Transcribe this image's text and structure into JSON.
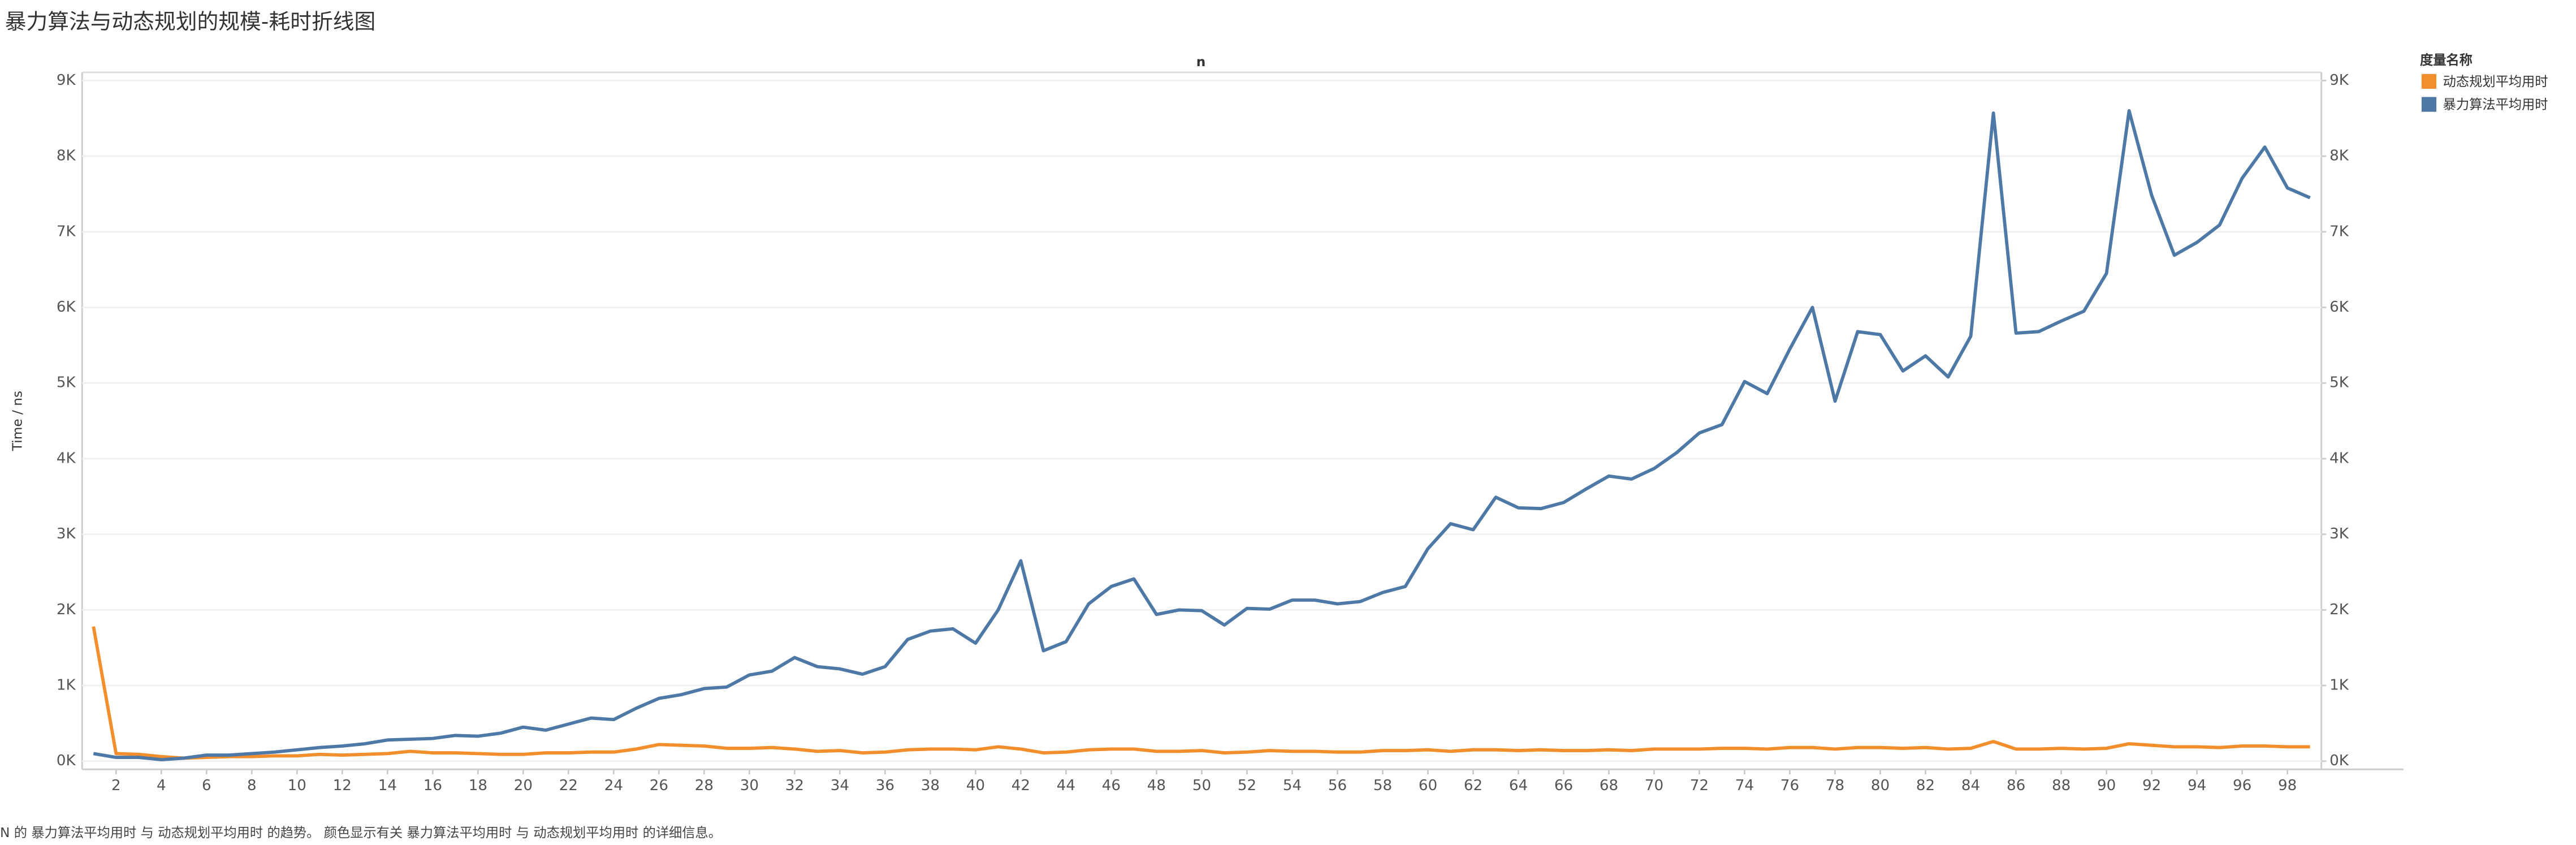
{
  "chart_data": {
    "type": "line",
    "title": "暴力算法与动态规划的规模-耗时折线图",
    "x_label": "n",
    "y_label": "Time / ns",
    "legend_title": "度量名称",
    "caption": "N 的 暴力算法平均用时 与 动态规划平均用时 的趋势。 颜色显示有关 暴力算法平均用时 与 动态规划平均用时 的详细信息。",
    "legend_position": "right",
    "grid": true,
    "x": [
      1,
      2,
      3,
      4,
      5,
      6,
      7,
      8,
      9,
      10,
      11,
      12,
      13,
      14,
      15,
      16,
      17,
      18,
      19,
      20,
      21,
      22,
      23,
      24,
      25,
      26,
      27,
      28,
      29,
      30,
      31,
      32,
      33,
      34,
      35,
      36,
      37,
      38,
      39,
      40,
      41,
      42,
      43,
      44,
      45,
      46,
      47,
      48,
      49,
      50,
      51,
      52,
      53,
      54,
      55,
      56,
      57,
      58,
      59,
      60,
      61,
      62,
      63,
      64,
      65,
      66,
      67,
      68,
      69,
      70,
      71,
      72,
      73,
      74,
      75,
      76,
      77,
      78,
      79,
      80,
      81,
      82,
      83,
      84,
      85,
      86,
      87,
      88,
      89,
      90,
      91,
      92,
      93,
      94,
      95,
      96,
      97,
      98,
      99
    ],
    "xlim": [
      0.5,
      99.5
    ],
    "xticks": [
      2,
      4,
      6,
      8,
      10,
      12,
      14,
      16,
      18,
      20,
      22,
      24,
      26,
      28,
      30,
      32,
      34,
      36,
      38,
      40,
      42,
      44,
      46,
      48,
      50,
      52,
      54,
      56,
      58,
      60,
      62,
      64,
      66,
      68,
      70,
      72,
      74,
      76,
      78,
      80,
      82,
      84,
      86,
      88,
      90,
      92,
      94,
      96,
      98
    ],
    "ylim": [
      0,
      9000
    ],
    "yticks": [
      {
        "value": 0,
        "label": "0K"
      },
      {
        "value": 1000,
        "label": "1K"
      },
      {
        "value": 2000,
        "label": "2K"
      },
      {
        "value": 3000,
        "label": "3K"
      },
      {
        "value": 4000,
        "label": "4K"
      },
      {
        "value": 5000,
        "label": "5K"
      },
      {
        "value": 6000,
        "label": "6K"
      },
      {
        "value": 7000,
        "label": "7K"
      },
      {
        "value": 8000,
        "label": "8K"
      },
      {
        "value": 9000,
        "label": "9K"
      }
    ],
    "y2lim": [
      0,
      9000
    ],
    "y2ticks": [
      {
        "value": 0,
        "label": "0K"
      },
      {
        "value": 1000,
        "label": "1K"
      },
      {
        "value": 2000,
        "label": "2K"
      },
      {
        "value": 3000,
        "label": "3K"
      },
      {
        "value": 4000,
        "label": "4K"
      },
      {
        "value": 5000,
        "label": "5K"
      },
      {
        "value": 6000,
        "label": "6K"
      },
      {
        "value": 7000,
        "label": "7K"
      },
      {
        "value": 8000,
        "label": "8K"
      },
      {
        "value": 9000,
        "label": "9K"
      }
    ],
    "series": [
      {
        "name": "动态规划平均用时",
        "color": "#f28e2b",
        "values": [
          1780,
          100,
          90,
          60,
          40,
          50,
          60,
          60,
          70,
          70,
          90,
          80,
          90,
          100,
          130,
          110,
          110,
          100,
          90,
          90,
          110,
          110,
          120,
          120,
          160,
          220,
          210,
          200,
          170,
          170,
          180,
          160,
          130,
          140,
          110,
          120,
          150,
          160,
          160,
          150,
          190,
          160,
          110,
          120,
          150,
          160,
          160,
          130,
          130,
          140,
          110,
          120,
          140,
          130,
          130,
          120,
          120,
          140,
          140,
          150,
          130,
          150,
          150,
          140,
          150,
          140,
          140,
          150,
          140,
          160,
          160,
          160,
          170,
          170,
          160,
          180,
          180,
          160,
          180,
          180,
          170,
          180,
          160,
          170,
          260,
          160,
          160,
          170,
          160,
          170,
          230,
          210,
          190,
          190,
          180,
          200,
          200,
          190,
          190
        ]
      },
      {
        "name": "暴力算法平均用时",
        "color": "#4e79a7",
        "values": [
          100,
          50,
          50,
          20,
          40,
          80,
          80,
          100,
          120,
          150,
          180,
          200,
          230,
          280,
          290,
          300,
          340,
          330,
          370,
          450,
          410,
          490,
          570,
          550,
          700,
          830,
          880,
          960,
          980,
          1140,
          1190,
          1370,
          1250,
          1220,
          1150,
          1250,
          1610,
          1720,
          1750,
          1560,
          2000,
          2650,
          1460,
          1580,
          2080,
          2310,
          2410,
          1940,
          2000,
          1990,
          1800,
          2020,
          2010,
          2130,
          2130,
          2080,
          2110,
          2230,
          2310,
          2810,
          3140,
          3060,
          3490,
          3350,
          3340,
          3420,
          3600,
          3770,
          3730,
          3870,
          4080,
          4340,
          4450,
          5020,
          4860,
          5450,
          6000,
          4760,
          5680,
          5640,
          5160,
          5360,
          5080,
          5620,
          8570,
          5660,
          5680,
          5820,
          5950,
          6450,
          8600,
          7480,
          6690,
          6860,
          7090,
          7710,
          8120,
          7580,
          7450
        ]
      }
    ]
  }
}
